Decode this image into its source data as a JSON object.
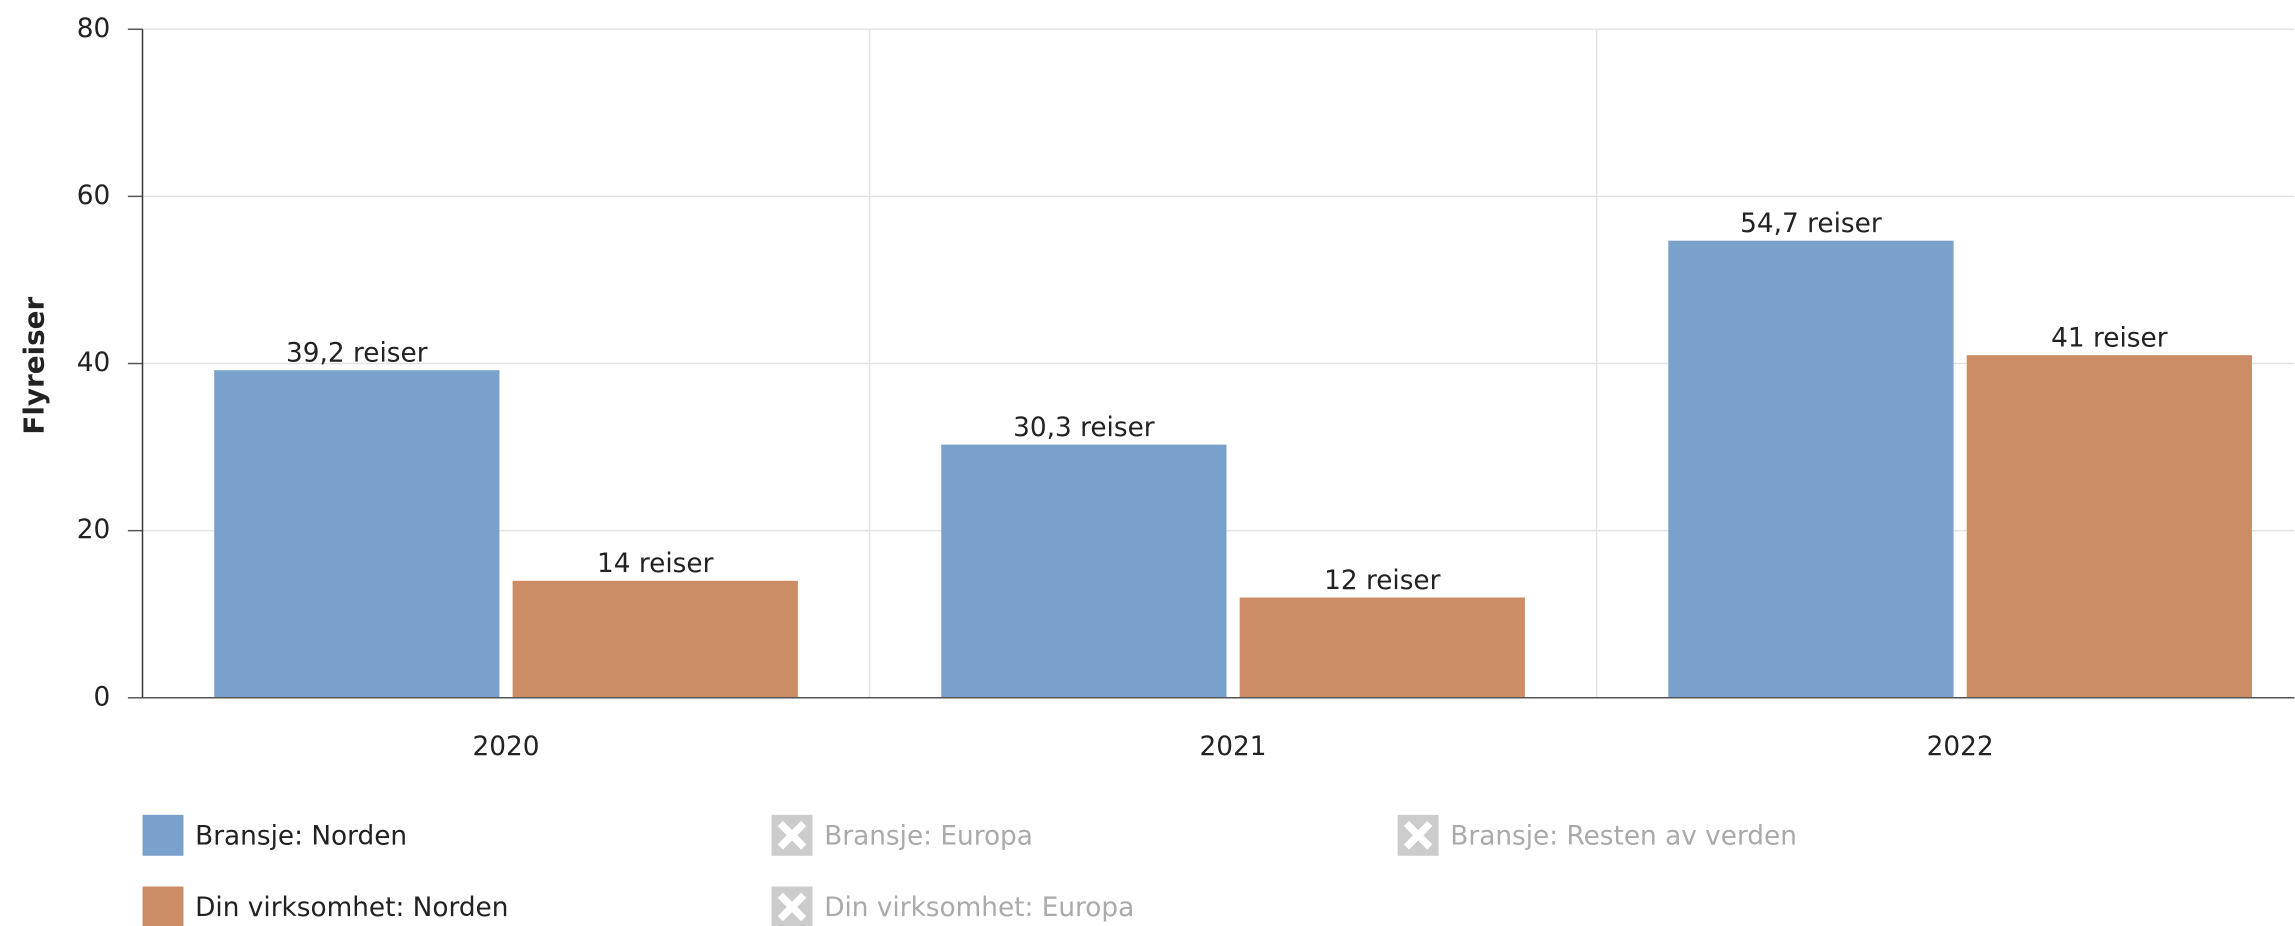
{
  "chart_data": {
    "type": "bar",
    "y_axis_label": "Flyreiser",
    "categories": [
      "2020",
      "2021",
      "2022"
    ],
    "series": [
      {
        "name": "Bransje: Norden",
        "color": "#7aa1cc",
        "visible": true,
        "values": [
          39.2,
          30.3,
          54.7
        ],
        "value_labels": [
          "39,2 reiser",
          "30,3 reiser",
          "54,7 reiser"
        ]
      },
      {
        "name": "Bransje: Europa",
        "color": "#cccccc",
        "visible": false,
        "values": [
          null,
          null,
          null
        ]
      },
      {
        "name": "Bransje: Resten av verden",
        "color": "#cccccc",
        "visible": false,
        "values": [
          null,
          null,
          null
        ]
      },
      {
        "name": "Din virksomhet: Norden",
        "color": "#cc8c66",
        "visible": true,
        "values": [
          14,
          12,
          41
        ],
        "value_labels": [
          "14 reiser",
          "12 reiser",
          "41 reiser"
        ]
      },
      {
        "name": "Din virksomhet: Europa",
        "color": "#cccccc",
        "visible": false,
        "values": [
          null,
          null,
          null
        ]
      }
    ],
    "ylim": [
      0,
      80
    ],
    "yticks": [
      0,
      20,
      40,
      60,
      80
    ],
    "grid": true
  }
}
